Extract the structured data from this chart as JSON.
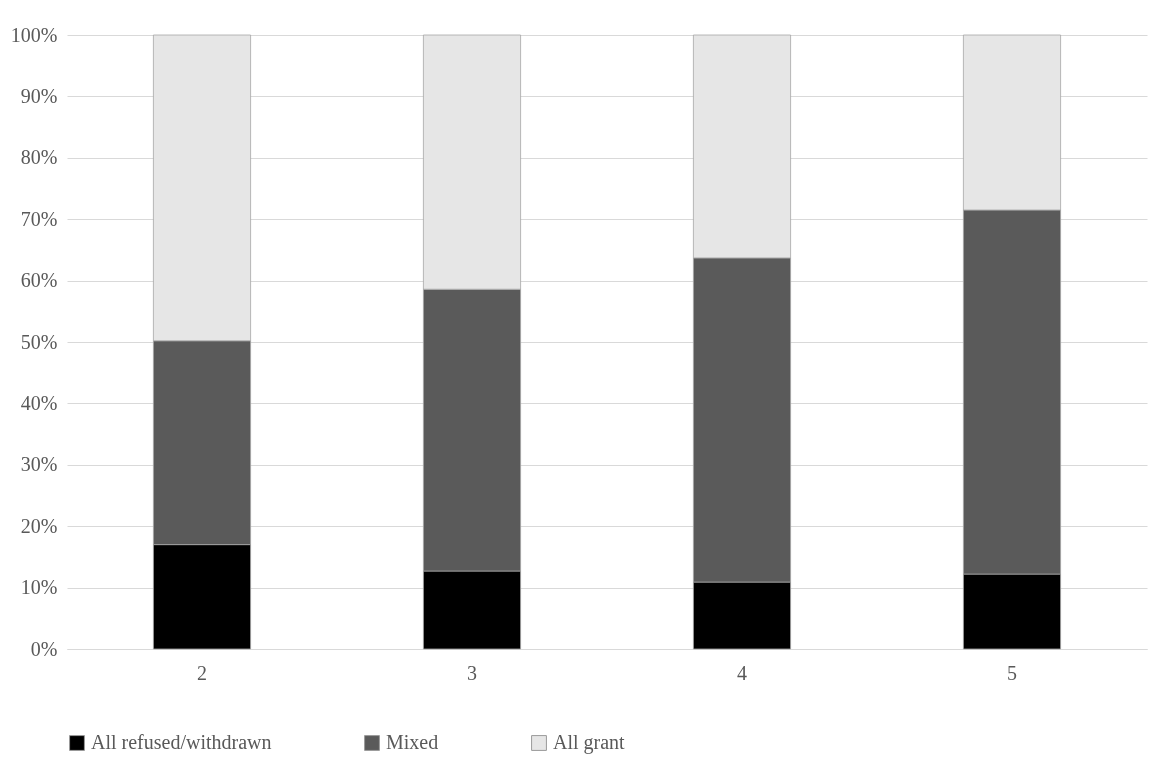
{
  "chart_data": {
    "type": "bar",
    "stacked": true,
    "categories": [
      "2",
      "3",
      "4",
      "5"
    ],
    "series": [
      {
        "name": "All refused/withdrawn",
        "color": "#000000",
        "values": [
          17.0,
          12.7,
          10.9,
          12.2
        ]
      },
      {
        "name": "Mixed",
        "color": "#5a5a5a",
        "values": [
          33.2,
          45.9,
          52.8,
          59.3
        ]
      },
      {
        "name": "All grant",
        "color": "#e6e6e6",
        "values": [
          49.8,
          41.4,
          36.3,
          28.5
        ]
      }
    ],
    "ylim": [
      0,
      100
    ],
    "yticks": [
      {
        "value": 0,
        "label": "0%"
      },
      {
        "value": 10,
        "label": "10%"
      },
      {
        "value": 20,
        "label": "20%"
      },
      {
        "value": 30,
        "label": "30%"
      },
      {
        "value": 40,
        "label": "40%"
      },
      {
        "value": 50,
        "label": "50%"
      },
      {
        "value": 60,
        "label": "60%"
      },
      {
        "value": 70,
        "label": "70%"
      },
      {
        "value": 80,
        "label": "80%"
      },
      {
        "value": 90,
        "label": "90%"
      },
      {
        "value": 100,
        "label": "100%"
      }
    ],
    "grid": "y",
    "legend": "bottom"
  }
}
